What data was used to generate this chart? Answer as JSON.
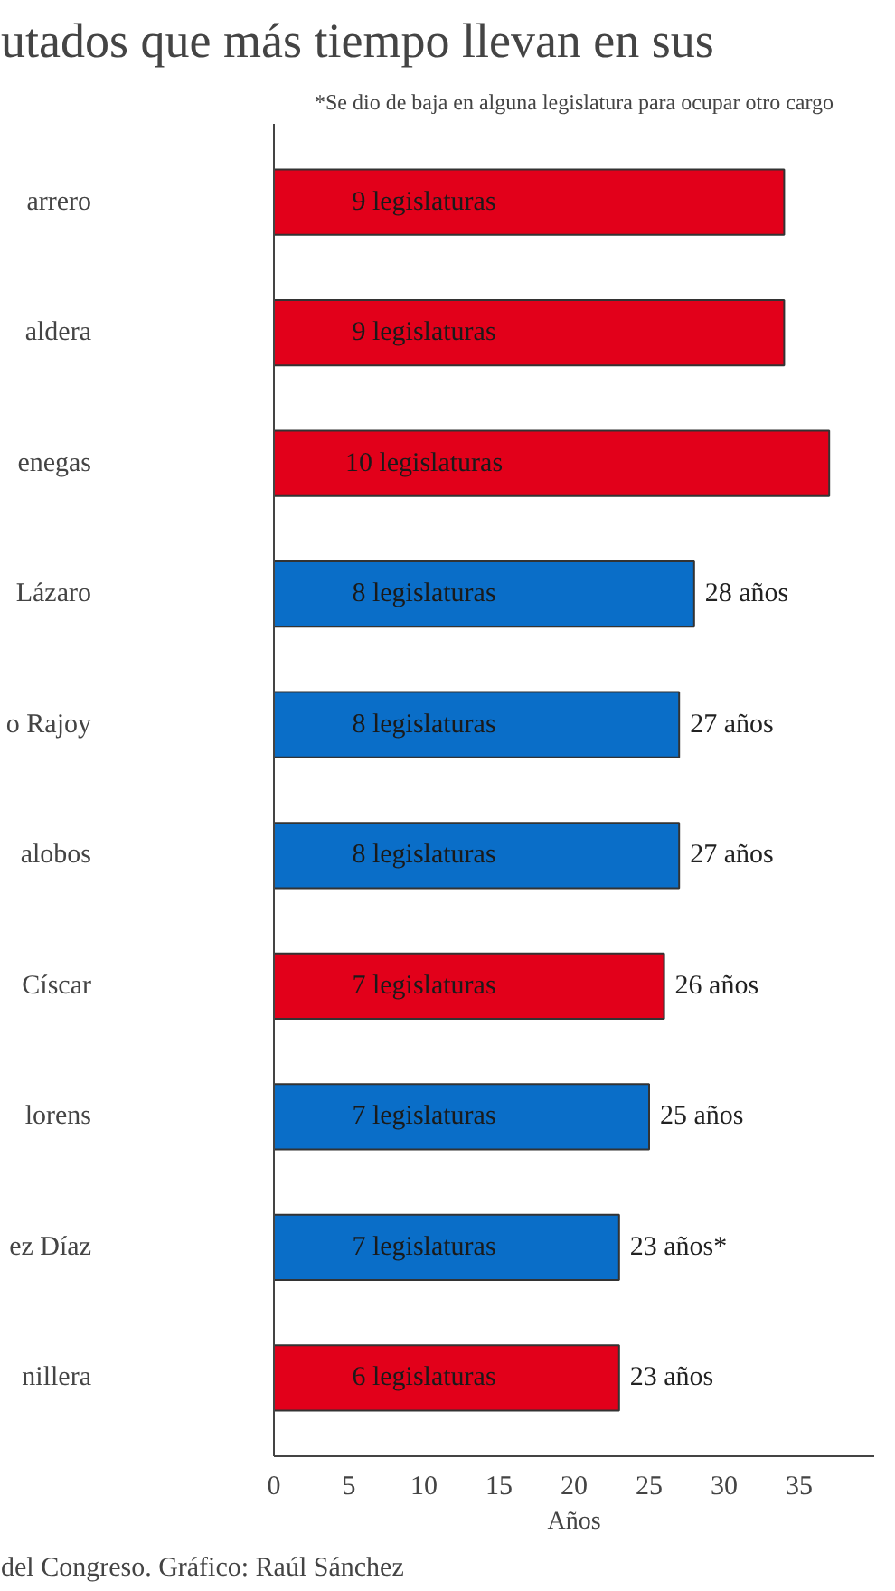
{
  "chart_data": {
    "type": "bar",
    "orientation": "horizontal",
    "title": "utados que más tiempo llevan en sus",
    "xlabel": "Años",
    "categories": [
      "arrero",
      "aldera",
      "enegas",
      "Lázaro",
      "o Rajoy",
      "alobos",
      "Císcar",
      "lorens",
      "ez Díaz",
      "nillera"
    ],
    "values": [
      34,
      34,
      37,
      28,
      27,
      27,
      26,
      25,
      23,
      23
    ],
    "colors": [
      "#e2001a",
      "#e2001a",
      "#e2001a",
      "#0a6ec8",
      "#0a6ec8",
      "#0a6ec8",
      "#e2001a",
      "#0a6ec8",
      "#0a6ec8",
      "#e2001a"
    ],
    "value_labels": [
      null,
      null,
      null,
      "28 años",
      "27 años",
      "27 años",
      "26 años",
      "25 años",
      "23 años*",
      "23 años"
    ],
    "xlim": [
      0,
      40
    ],
    "xticks": [
      0,
      5,
      10,
      15,
      20,
      25,
      30,
      35
    ],
    "grid": false,
    "annotations": [
      "*Se dio de baja en alguna legislatura para ocupar otro cargo",
      "9 legislaturas",
      "9 legislaturas",
      "10 legislaturas",
      "8 legislaturas",
      "8 legislaturas",
      "8 legislaturas",
      "7 legislaturas",
      "7 legislaturas",
      "7 legislaturas",
      "6 legislaturas",
      "del Congreso. Gráfico: Raúl Sánchez"
    ]
  }
}
